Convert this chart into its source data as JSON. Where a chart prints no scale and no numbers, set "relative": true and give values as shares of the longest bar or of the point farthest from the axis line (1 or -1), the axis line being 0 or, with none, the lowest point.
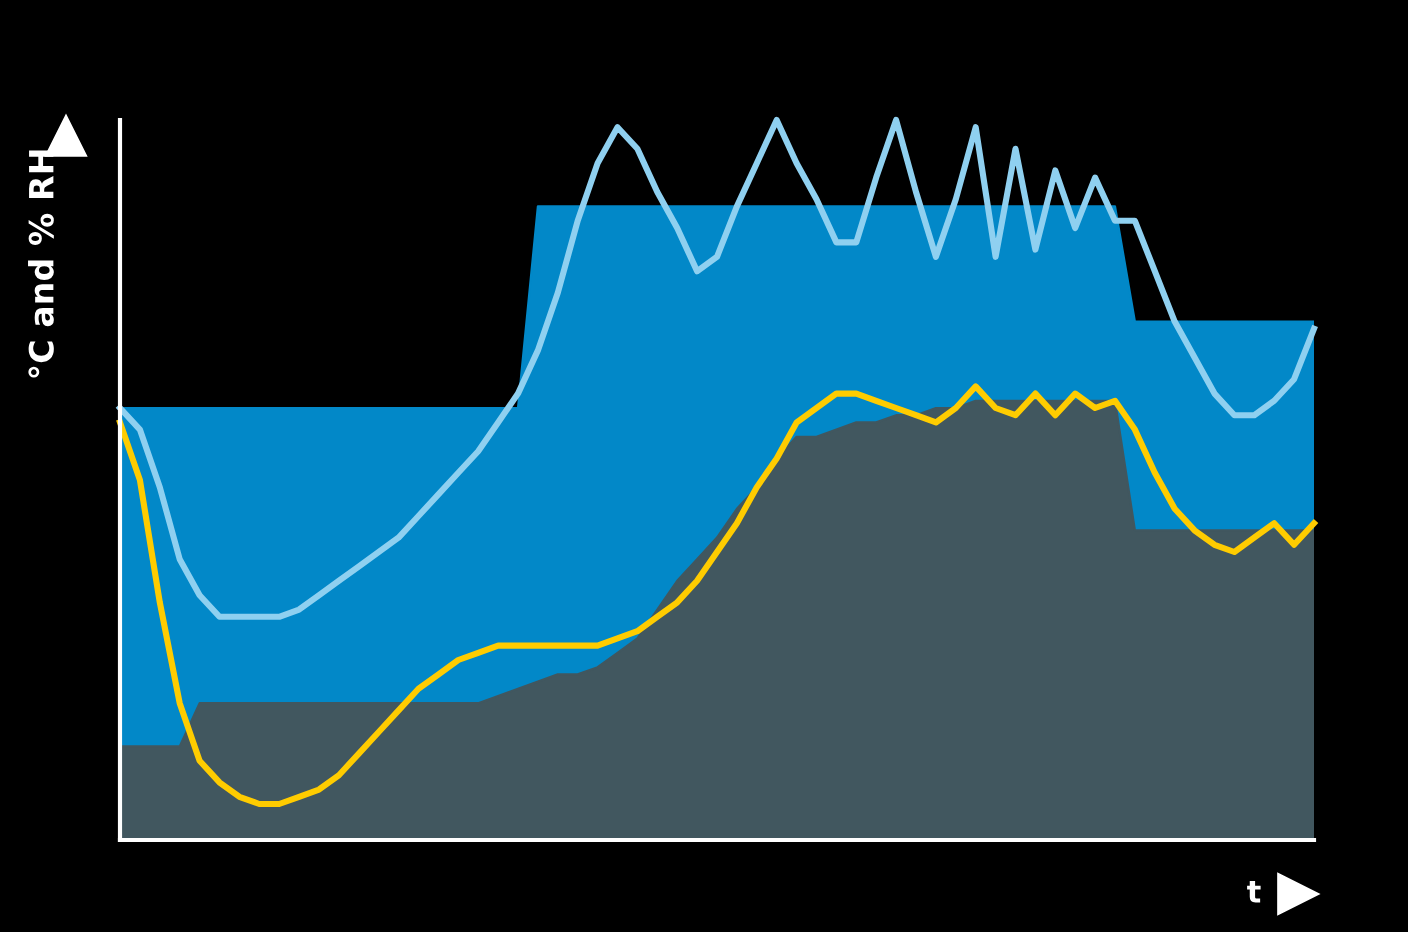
{
  "chart_data": {
    "type": "area",
    "relative": true,
    "ylabel": "°C and % RH",
    "xlabel": "t",
    "grid": false,
    "categories": [
      null,
      null,
      null,
      null,
      null,
      null,
      null,
      null,
      null,
      null,
      null,
      null,
      null,
      null,
      null,
      null,
      null,
      null,
      null,
      null,
      null,
      null,
      null,
      null,
      null,
      null,
      null,
      null,
      null,
      null,
      null,
      null,
      null,
      null,
      null,
      null,
      null,
      null,
      null,
      null,
      null,
      null,
      null,
      null,
      null,
      null,
      null,
      null,
      null,
      null,
      null,
      null,
      null,
      null,
      null,
      null,
      null,
      null,
      null,
      null,
      null
    ],
    "series": [
      {
        "color": "#0288c8",
        "values": [
          0.6,
          0.6,
          0.6,
          0.6,
          0.6,
          0.6,
          0.6,
          0.6,
          0.6,
          0.6,
          0.6,
          0.6,
          0.6,
          0.6,
          0.6,
          0.6,
          0.6,
          0.6,
          0.6,
          0.6,
          0.6,
          0.88,
          0.88,
          0.88,
          0.88,
          0.88,
          0.88,
          0.88,
          0.88,
          0.88,
          0.88,
          0.88,
          0.88,
          0.88,
          0.88,
          0.88,
          0.88,
          0.88,
          0.88,
          0.88,
          0.88,
          0.88,
          0.88,
          0.88,
          0.88,
          0.88,
          0.88,
          0.88,
          0.88,
          0.88,
          0.88,
          0.72,
          0.72,
          0.72,
          0.72,
          0.72,
          0.72,
          0.72,
          0.72,
          0.72,
          0.72
        ]
      },
      {
        "color": "#41575f",
        "values": [
          0.13,
          0.13,
          0.13,
          0.13,
          0.19,
          0.19,
          0.19,
          0.19,
          0.19,
          0.19,
          0.19,
          0.19,
          0.19,
          0.19,
          0.19,
          0.19,
          0.19,
          0.19,
          0.19,
          0.2,
          0.21,
          0.22,
          0.23,
          0.23,
          0.24,
          0.26,
          0.28,
          0.32,
          0.36,
          0.39,
          0.42,
          0.46,
          0.49,
          0.53,
          0.56,
          0.56,
          0.57,
          0.58,
          0.58,
          0.59,
          0.59,
          0.6,
          0.6,
          0.61,
          0.61,
          0.61,
          0.61,
          0.61,
          0.61,
          0.61,
          0.61,
          0.43,
          0.43,
          0.43,
          0.43,
          0.43,
          0.43,
          0.43,
          0.43,
          0.43,
          0.43
        ]
      },
      {
        "type": "line",
        "color": "#8fd0f0",
        "values": [
          0.6,
          0.57,
          0.49,
          0.39,
          0.34,
          0.31,
          0.31,
          0.31,
          0.31,
          0.32,
          0.34,
          0.36,
          0.38,
          0.4,
          0.42,
          0.45,
          0.48,
          0.51,
          0.54,
          0.58,
          0.62,
          0.68,
          0.76,
          0.86,
          0.94,
          0.99,
          0.96,
          0.9,
          0.85,
          0.79,
          0.81,
          0.88,
          0.94,
          1.0,
          0.94,
          0.89,
          0.83,
          0.83,
          0.92,
          1.0,
          0.9,
          0.81,
          0.89,
          0.99,
          0.81,
          0.96,
          0.82,
          0.93,
          0.85,
          0.92,
          0.86,
          0.86,
          0.79,
          0.72,
          0.67,
          0.62,
          0.59,
          0.59,
          0.61,
          0.64,
          0.71
        ]
      },
      {
        "type": "line",
        "color": "#ffcc00",
        "values": [
          0.58,
          0.5,
          0.33,
          0.19,
          0.11,
          0.08,
          0.06,
          0.05,
          0.05,
          0.06,
          0.07,
          0.09,
          0.12,
          0.15,
          0.18,
          0.21,
          0.23,
          0.25,
          0.26,
          0.27,
          0.27,
          0.27,
          0.27,
          0.27,
          0.27,
          0.28,
          0.29,
          0.31,
          0.33,
          0.36,
          0.4,
          0.44,
          0.49,
          0.53,
          0.58,
          0.6,
          0.62,
          0.62,
          0.61,
          0.6,
          0.59,
          0.58,
          0.6,
          0.63,
          0.6,
          0.59,
          0.62,
          0.59,
          0.62,
          0.6,
          0.61,
          0.57,
          0.51,
          0.46,
          0.43,
          0.41,
          0.4,
          0.42,
          0.44,
          0.41,
          0.44
        ]
      }
    ]
  }
}
